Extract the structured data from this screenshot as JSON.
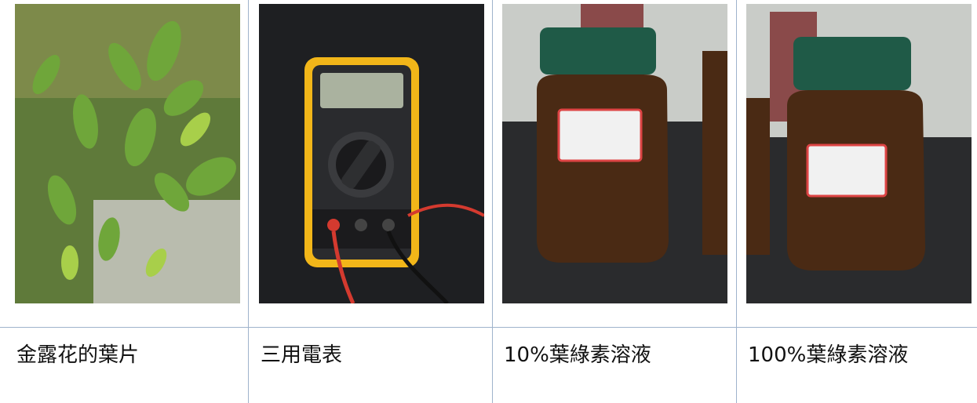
{
  "table": {
    "rows": [
      [
        "金露花的葉片",
        "三用電表",
        "10%葉綠素溶液",
        "100%葉綠素溶液"
      ]
    ]
  }
}
